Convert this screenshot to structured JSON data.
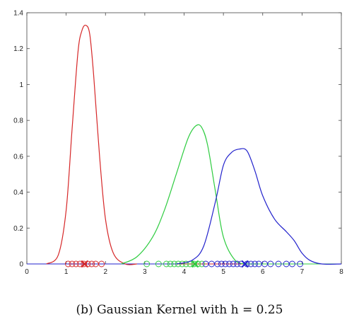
{
  "caption": "(b) Gaussian Kernel with h = 0.25",
  "chart_data": {
    "type": "line",
    "title": "",
    "xlabel": "",
    "ylabel": "",
    "xlim": [
      0,
      8
    ],
    "ylim": [
      0,
      1.4
    ],
    "x_ticks": [
      0,
      1,
      2,
      3,
      4,
      5,
      6,
      7,
      8
    ],
    "y_ticks": [
      0,
      0.2,
      0.4,
      0.6,
      0.8,
      1,
      1.2,
      1.4
    ],
    "x_tick_labels": [
      "0",
      "1",
      "2",
      "3",
      "4",
      "5",
      "6",
      "7",
      "8"
    ],
    "y_tick_labels": [
      "0",
      "0.2",
      "0.4",
      "0.6",
      "0.8",
      "1",
      "1.2",
      "1.4"
    ],
    "grid": false,
    "series": [
      {
        "color": "#d62728",
        "x": [
          0.5,
          0.8,
          1.0,
          1.15,
          1.3,
          1.4,
          1.5,
          1.6,
          1.7,
          1.85,
          2.0,
          2.2,
          2.5,
          2.8
        ],
        "y": [
          0.0,
          0.05,
          0.3,
          0.75,
          1.18,
          1.3,
          1.33,
          1.28,
          1.05,
          0.6,
          0.25,
          0.06,
          0.0,
          0.0
        ],
        "samples": [
          1.05,
          1.15,
          1.25,
          1.35,
          1.45,
          1.55,
          1.65,
          1.75,
          1.9
        ],
        "mean": 1.47
      },
      {
        "color": "#2ecc40",
        "x": [
          2.4,
          2.8,
          3.2,
          3.5,
          3.8,
          4.1,
          4.3,
          4.45,
          4.6,
          4.8,
          5.0,
          5.3,
          5.6
        ],
        "y": [
          0.0,
          0.04,
          0.15,
          0.3,
          0.5,
          0.7,
          0.77,
          0.76,
          0.66,
          0.4,
          0.15,
          0.02,
          0.0
        ],
        "samples": [
          3.05,
          3.35,
          3.55,
          3.65,
          3.75,
          3.85,
          3.95,
          4.05,
          4.15,
          4.25,
          4.35,
          4.45
        ],
        "mean": 4.28
      },
      {
        "color": "#2222cc",
        "x": [
          3.8,
          4.2,
          4.5,
          4.8,
          5.0,
          5.2,
          5.4,
          5.6,
          5.8,
          6.0,
          6.3,
          6.6,
          6.8,
          7.0,
          7.2,
          7.5,
          8.0
        ],
        "y": [
          0.0,
          0.02,
          0.1,
          0.35,
          0.55,
          0.62,
          0.64,
          0.63,
          0.52,
          0.38,
          0.25,
          0.18,
          0.13,
          0.06,
          0.02,
          0.0,
          0.0
        ],
        "samples": [
          4.55,
          4.7,
          4.85,
          4.95,
          5.05,
          5.15,
          5.25,
          5.35,
          5.45,
          5.6,
          5.7,
          5.8,
          5.9,
          6.05,
          6.2,
          6.4,
          6.6,
          6.75,
          6.95
        ],
        "mean": 5.55
      }
    ]
  }
}
